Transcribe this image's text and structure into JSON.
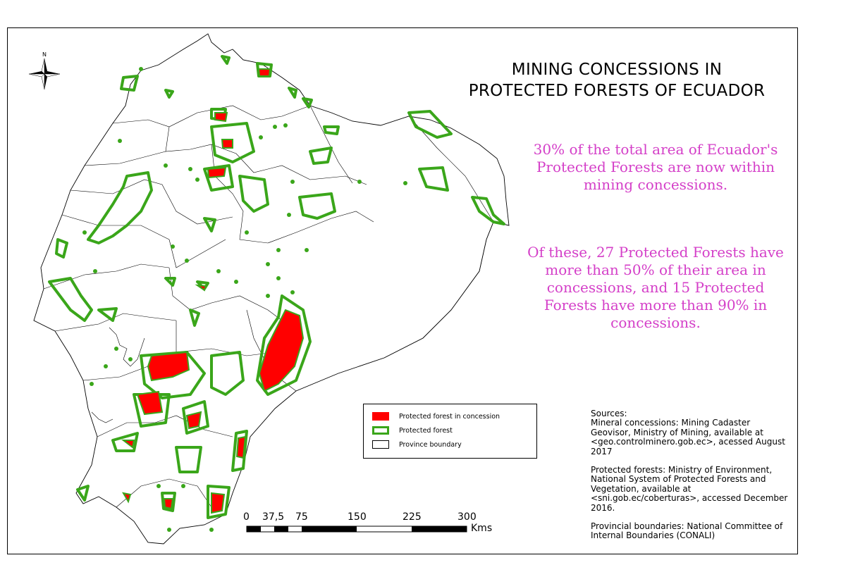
{
  "title": {
    "line1": "MINING CONCESSIONS IN",
    "line2": "PROTECTED FORESTS OF ECUADOR"
  },
  "north_arrow": {
    "label": "N"
  },
  "notes": {
    "paragraph1": "30% of the total area of Ecuador's Protected Forests are now within mining concessions.",
    "paragraph2": "Of these, 27 Protected Forests have more than 50% of their area in concessions, and 15 Protected Forests have more than 90% in concessions."
  },
  "legend": {
    "items": [
      {
        "label": "Protected forest in concession",
        "color": "#ff0000"
      },
      {
        "label": "Protected forest",
        "color": "#3aa61a"
      },
      {
        "label": "Province boundary",
        "color": "#000000"
      }
    ]
  },
  "scale_bar": {
    "ticks": [
      "0",
      "37,5",
      "75",
      "150",
      "225",
      "300"
    ],
    "unit": "Kms"
  },
  "sources": {
    "heading": "Sources:",
    "mineral": "Mineral concessions: Mining Cadaster Geovisor, Ministry of Mining, available at <geo.controlminero.gob.ec>, acessed August 2017",
    "forests": "Protected forests: Ministry of Environment, National System of Protected Forests and Vegetation, available at <sni.gob.ec/coberturas>, accessed December 2016.",
    "boundaries": "Provincial boundaries: National Committee of Internal Boundaries (CONALI)"
  },
  "colors": {
    "concession": "#ff0000",
    "forest": "#3aa61a",
    "note": "#d43fc8",
    "boundary": "#000000"
  }
}
